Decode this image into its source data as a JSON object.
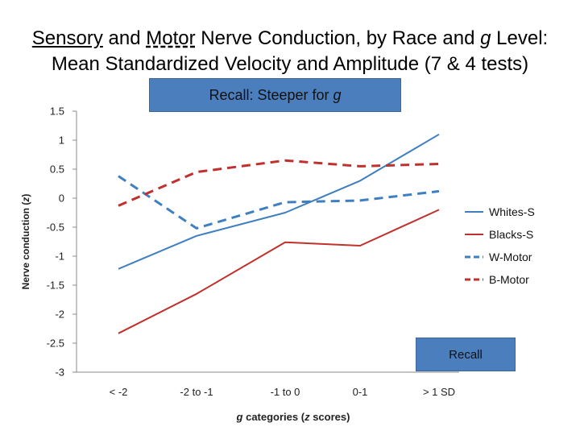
{
  "header": {
    "part1": "Sensory",
    "part2": " and ",
    "part3": "Motor",
    "part4": " Nerve Conduction, by Race and ",
    "part5": "g",
    "part6": " Level:",
    "line2": "Mean Standardized Velocity and Amplitude (7 & 4 tests)"
  },
  "banner": {
    "text": "Recall: Steeper for ",
    "italic": "g"
  },
  "badge": {
    "text": "Recall"
  },
  "chart_data": {
    "type": "line",
    "categories": [
      "< -2",
      "-2 to -1",
      "-1 to 0",
      "0-1",
      "> 1 SD"
    ],
    "ylim": [
      -3,
      1.5
    ],
    "yticks": [
      "1.5",
      "1",
      "0.5",
      "0",
      "-0.5",
      "-1",
      "-1.5",
      "-2",
      "-2.5",
      "-3"
    ],
    "ylabel_pre": "Nerve conduction (",
    "ylabel_it": "z",
    "ylabel_post": ")",
    "xlabel_it1": "g",
    "xlabel_mid": " categories  (",
    "xlabel_it2": "z",
    "xlabel_post": " scores)",
    "series": [
      {
        "name": "Whites-S",
        "color": "#3f7fc0",
        "dash": "solid",
        "values": [
          -1.22,
          -0.65,
          -0.25,
          0.3,
          1.1
        ]
      },
      {
        "name": "Blacks-S",
        "color": "#c0302c",
        "dash": "solid",
        "values": [
          -2.33,
          -1.65,
          -0.76,
          -0.82,
          -0.2
        ]
      },
      {
        "name": "W-Motor",
        "color": "#3f7fc0",
        "dash": "dashed",
        "values": [
          0.38,
          -0.52,
          -0.07,
          -0.04,
          0.12
        ]
      },
      {
        "name": "B-Motor",
        "color": "#c0302c",
        "dash": "dashed",
        "values": [
          -0.13,
          0.45,
          0.65,
          0.55,
          0.59
        ]
      }
    ]
  }
}
